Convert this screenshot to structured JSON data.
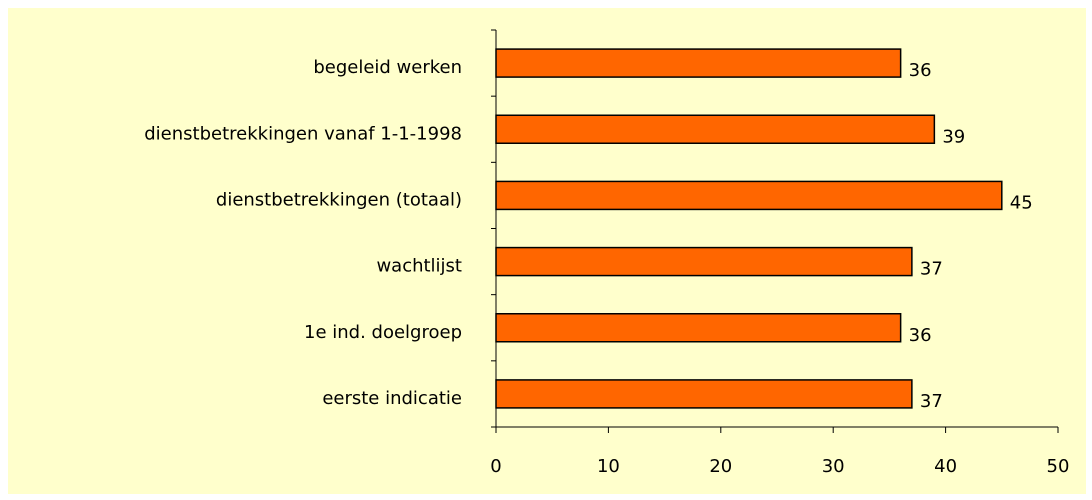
{
  "chart_data": {
    "type": "barh",
    "categories": [
      "begeleid werken",
      "dienstbetrekkingen vanaf 1-1-1998",
      "dienstbetrekkingen (totaal)",
      "wachtlijst",
      "1e ind. doelgroep",
      "eerste indicatie"
    ],
    "values": [
      36,
      39,
      45,
      37,
      36,
      37
    ],
    "color": "#ff6600",
    "xlim": [
      0,
      50
    ],
    "xticks": [
      0,
      10,
      20,
      30,
      40,
      50
    ],
    "grid": false
  }
}
